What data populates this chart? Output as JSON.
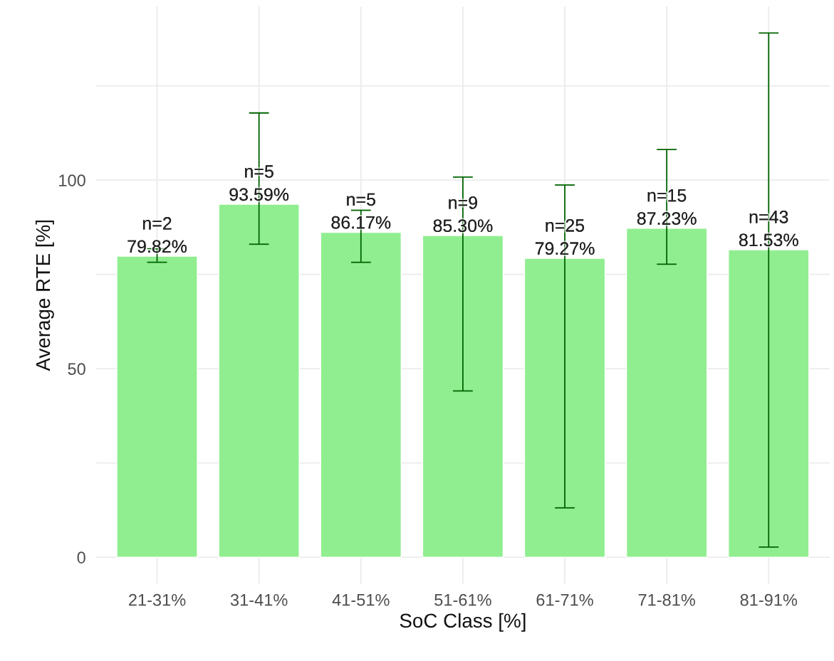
{
  "chart_data": {
    "type": "bar",
    "xlabel": "SoC Class [%]",
    "ylabel": "Average RTE [%]",
    "categories": [
      "21-31%",
      "31-41%",
      "41-51%",
      "51-61%",
      "61-71%",
      "71-81%",
      "81-91%"
    ],
    "values": [
      79.82,
      93.59,
      86.17,
      85.3,
      79.27,
      87.23,
      81.53
    ],
    "errors": [
      [
        78.2,
        81.8
      ],
      [
        83.0,
        117.8
      ],
      [
        78.2,
        92.0
      ],
      [
        44.1,
        100.8
      ],
      [
        13.1,
        98.7
      ],
      [
        77.7,
        108.1
      ],
      [
        2.7,
        139.0
      ]
    ],
    "value_labels": [
      "n=2\n79.82%",
      "n=5\n93.59%",
      "n=5\n86.17%",
      "n=9\n85.30%",
      "n=25\n79.27%",
      "n=15\n87.23%",
      "n=43\n81.53%"
    ],
    "color": "#90ee90",
    "ylim": [
      -7,
      146
    ],
    "yticks": [
      0,
      {
        "value": 25,
        "label": null
      },
      50,
      {
        "value": 75,
        "label": null
      },
      100,
      {
        "value": 125,
        "label": null
      }
    ],
    "grid": true
  }
}
